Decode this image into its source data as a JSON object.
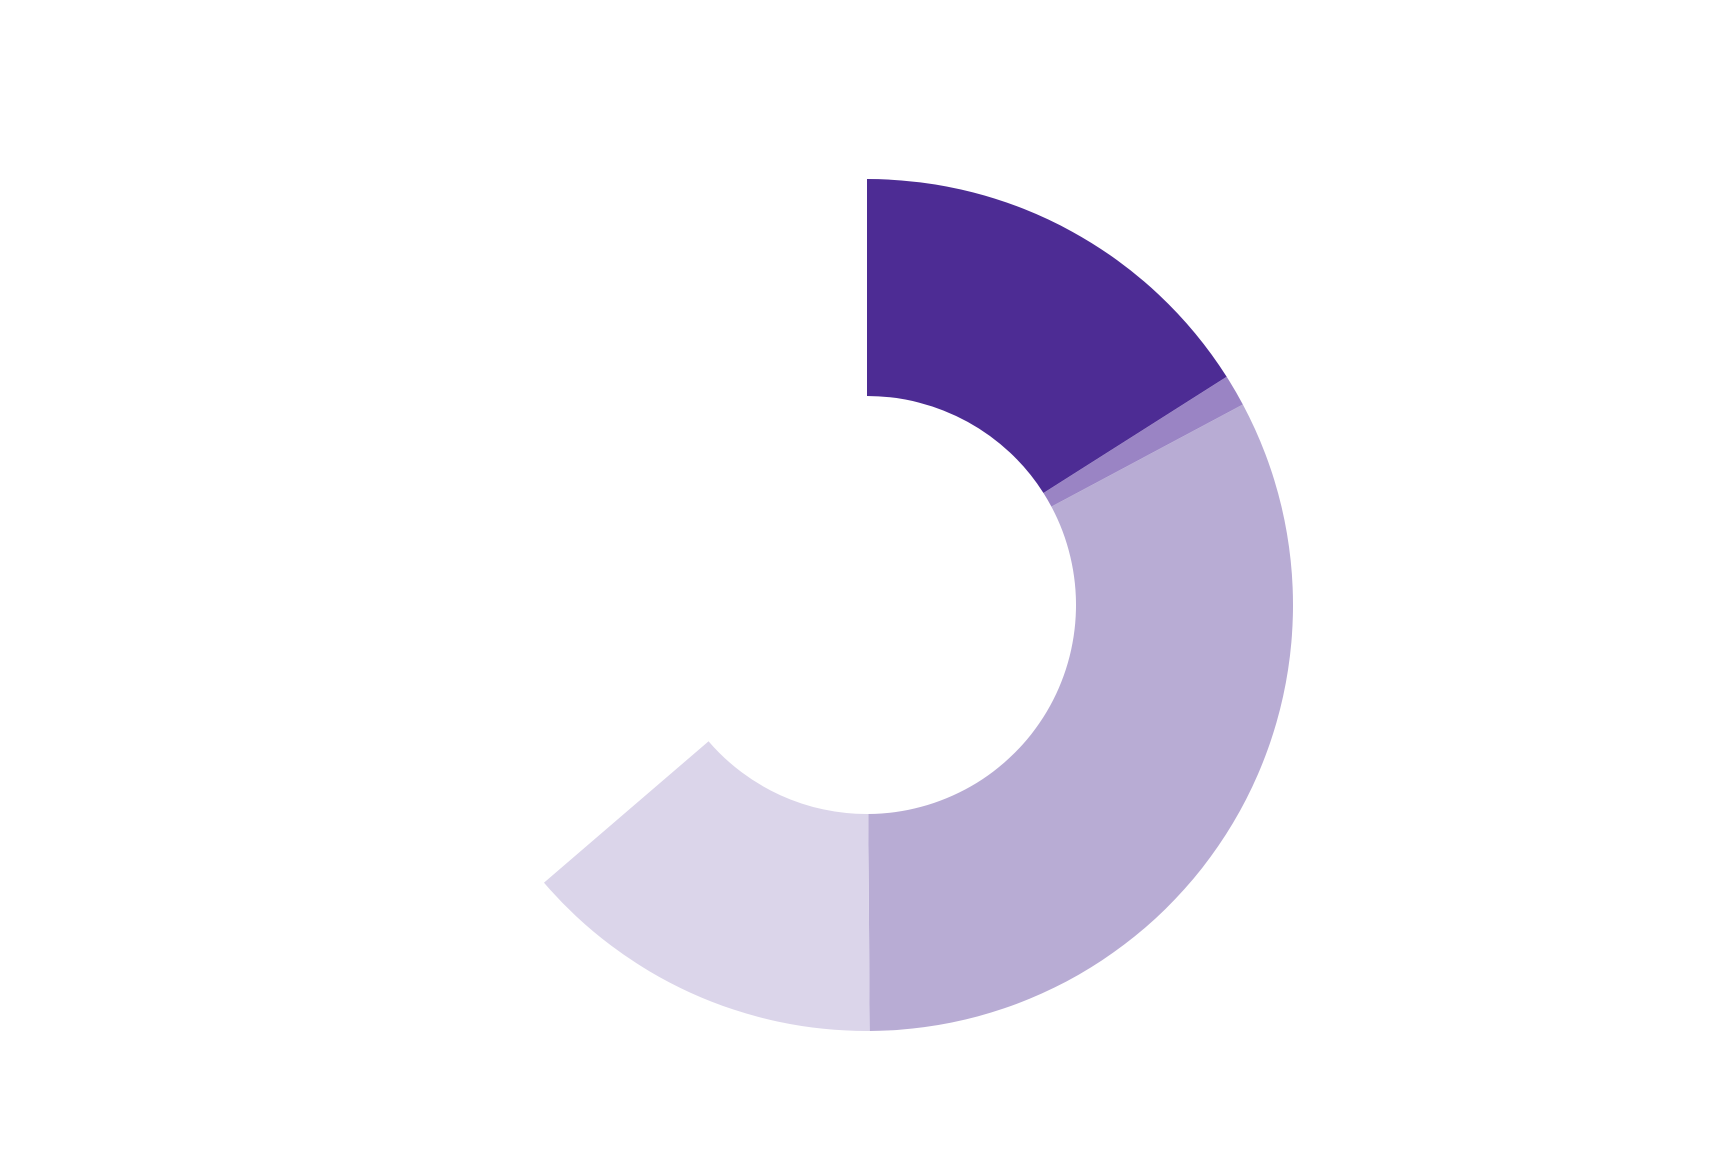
{
  "chart_data": {
    "type": "donut",
    "categories": [
      null,
      null,
      null,
      null,
      null
    ],
    "values": [
      16,
      1.2,
      32.7,
      13.8,
      36.3
    ],
    "colors": [
      "#4d2c94",
      "#9a84c4",
      "#b8acd4",
      "#dbd5ea",
      "#ffffff"
    ]
  }
}
